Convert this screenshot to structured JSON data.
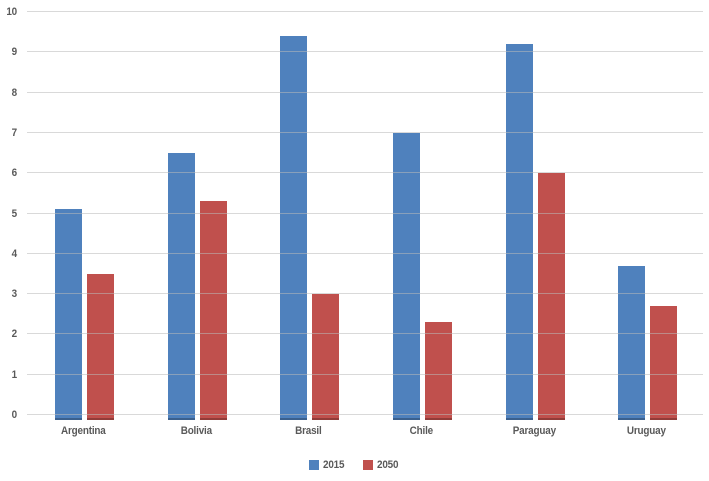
{
  "chart_data": {
    "type": "bar",
    "title": "",
    "xlabel": "",
    "ylabel": "",
    "categories": [
      "Argentina",
      "Bolivia",
      "Brasil",
      "Chile",
      "Paraguay",
      "Uruguay"
    ],
    "series": [
      {
        "name": "2015",
        "color": "#4F81BD",
        "values": [
          5.1,
          6.5,
          9.4,
          7.0,
          9.2,
          3.7
        ]
      },
      {
        "name": "2050",
        "color": "#C0504D",
        "values": [
          3.5,
          5.3,
          3.0,
          2.3,
          6.0,
          2.7
        ]
      }
    ],
    "ylim": [
      0,
      10
    ],
    "yticks": [
      "0",
      "1",
      "2",
      "3",
      "4",
      "5",
      "6",
      "7",
      "8",
      "9",
      "10"
    ],
    "grid": true,
    "legend_position": "bottom",
    "gridline_color": "#D9D9D9",
    "axis_text_color": "#595959",
    "background_color": "#FFFFFF"
  }
}
